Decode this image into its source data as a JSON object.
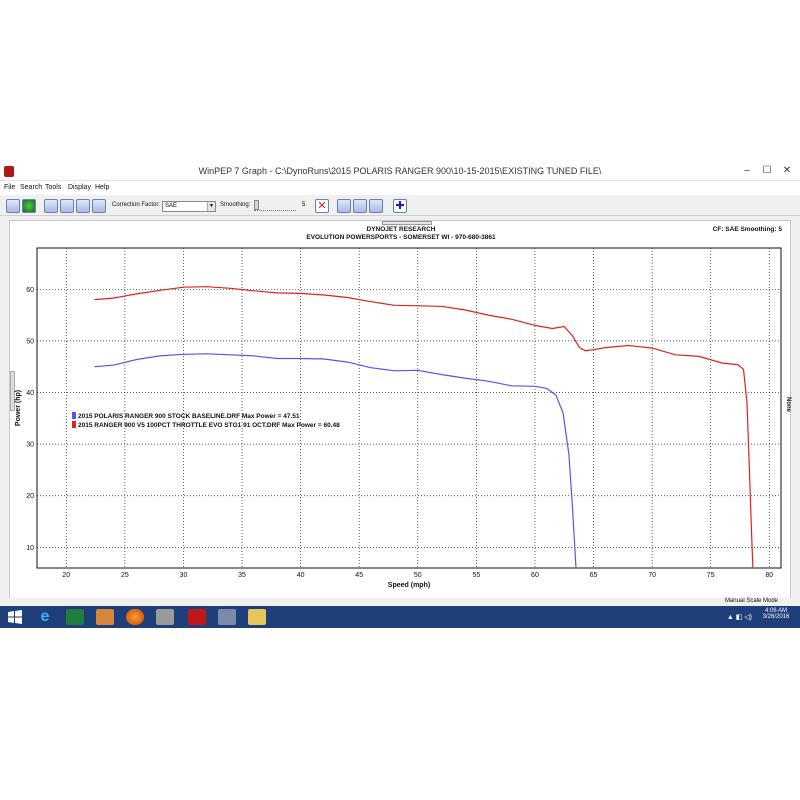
{
  "window": {
    "title": "WinPEP 7    Graph - C:\\DynoRuns\\2015 POLARIS RANGER 900\\10-15-2015\\EXISTING TUNED FILE\\",
    "minimize": "–",
    "maximize": "☐",
    "close": "✕"
  },
  "menu": [
    "File",
    "Search",
    "Tools",
    "Display",
    "Help"
  ],
  "toolbar": {
    "correction_label": "Correction Factor:",
    "correction_value": "SAE",
    "smoothing_label": "Smoothing:",
    "smoothing_value": "5"
  },
  "graph": {
    "header1": "DYNOJET RESEARCH",
    "header2": "EVOLUTION POWERSPORTS - SOMERSET WI - 970-680-3861",
    "cf": "CF: SAE  Smoothing: 5",
    "right_label": "None"
  },
  "chart_data": {
    "type": "line",
    "xlabel": "Speed (mph)",
    "ylabel": "Power (hp)",
    "xlim": [
      17.5,
      81
    ],
    "ylim": [
      6,
      68
    ],
    "xticks": [
      20,
      25,
      30,
      35,
      40,
      45,
      50,
      55,
      60,
      65,
      70,
      75,
      80
    ],
    "yticks": [
      10,
      20,
      30,
      40,
      50,
      60
    ],
    "grid": true,
    "legend_position": "middle-left",
    "series": [
      {
        "name": "2015 POLARIS RANGER 900 STOCK BASELINE.DRF Max Power = 47.51",
        "color": "#5555ee",
        "x": [
          22.4,
          24,
          26,
          28,
          30,
          32,
          34,
          36,
          38,
          40,
          42,
          44,
          46,
          48,
          50,
          52,
          54,
          56,
          58,
          60,
          61,
          61.8,
          62.4,
          62.9,
          63.2,
          63.4,
          63.5
        ],
        "y": [
          45.0,
          45.3,
          46.4,
          47.1,
          47.4,
          47.5,
          47.3,
          47.1,
          46.6,
          46.6,
          46.5,
          45.9,
          44.8,
          44.2,
          44.3,
          43.5,
          42.8,
          42.2,
          41.3,
          41.2,
          40.8,
          39.5,
          36,
          28,
          18,
          10,
          6
        ]
      },
      {
        "name": "2015 RANGER 900 V5 100PCT THROTTLE EVO STG1 91 OCT.DRF Max Power = 60.48",
        "color": "#e32020",
        "x": [
          22.4,
          24,
          26,
          28,
          30,
          32,
          34,
          36,
          38,
          40,
          42,
          44,
          46,
          48,
          50,
          52,
          54,
          56,
          58,
          60,
          61.5,
          62.5,
          63.2,
          63.8,
          64.3,
          65,
          66,
          68,
          70,
          72,
          74,
          76,
          77.3,
          77.8,
          78.1,
          78.3,
          78.5,
          78.6
        ],
        "y": [
          58.0,
          58.3,
          59.1,
          59.8,
          60.4,
          60.5,
          60.2,
          59.7,
          59.3,
          59.2,
          58.9,
          58.4,
          57.6,
          56.9,
          56.8,
          56.7,
          56.0,
          55.0,
          54.2,
          53.0,
          52.4,
          52.8,
          51.0,
          48.7,
          48.1,
          48.3,
          48.7,
          49.1,
          48.6,
          47.3,
          47.0,
          45.7,
          45.4,
          44.5,
          38,
          25,
          12,
          6
        ]
      }
    ]
  },
  "status": {
    "mode": "Manual Scale Mode"
  },
  "taskbar": {
    "time": "4:06 AM",
    "date": "3/26/2016",
    "apps": [
      "windows-start",
      "internet-explorer",
      "excel",
      "photo-gallery",
      "firefox",
      "explorer-chrome",
      "dynojet-winpep",
      "tools",
      "file-explorer"
    ]
  }
}
